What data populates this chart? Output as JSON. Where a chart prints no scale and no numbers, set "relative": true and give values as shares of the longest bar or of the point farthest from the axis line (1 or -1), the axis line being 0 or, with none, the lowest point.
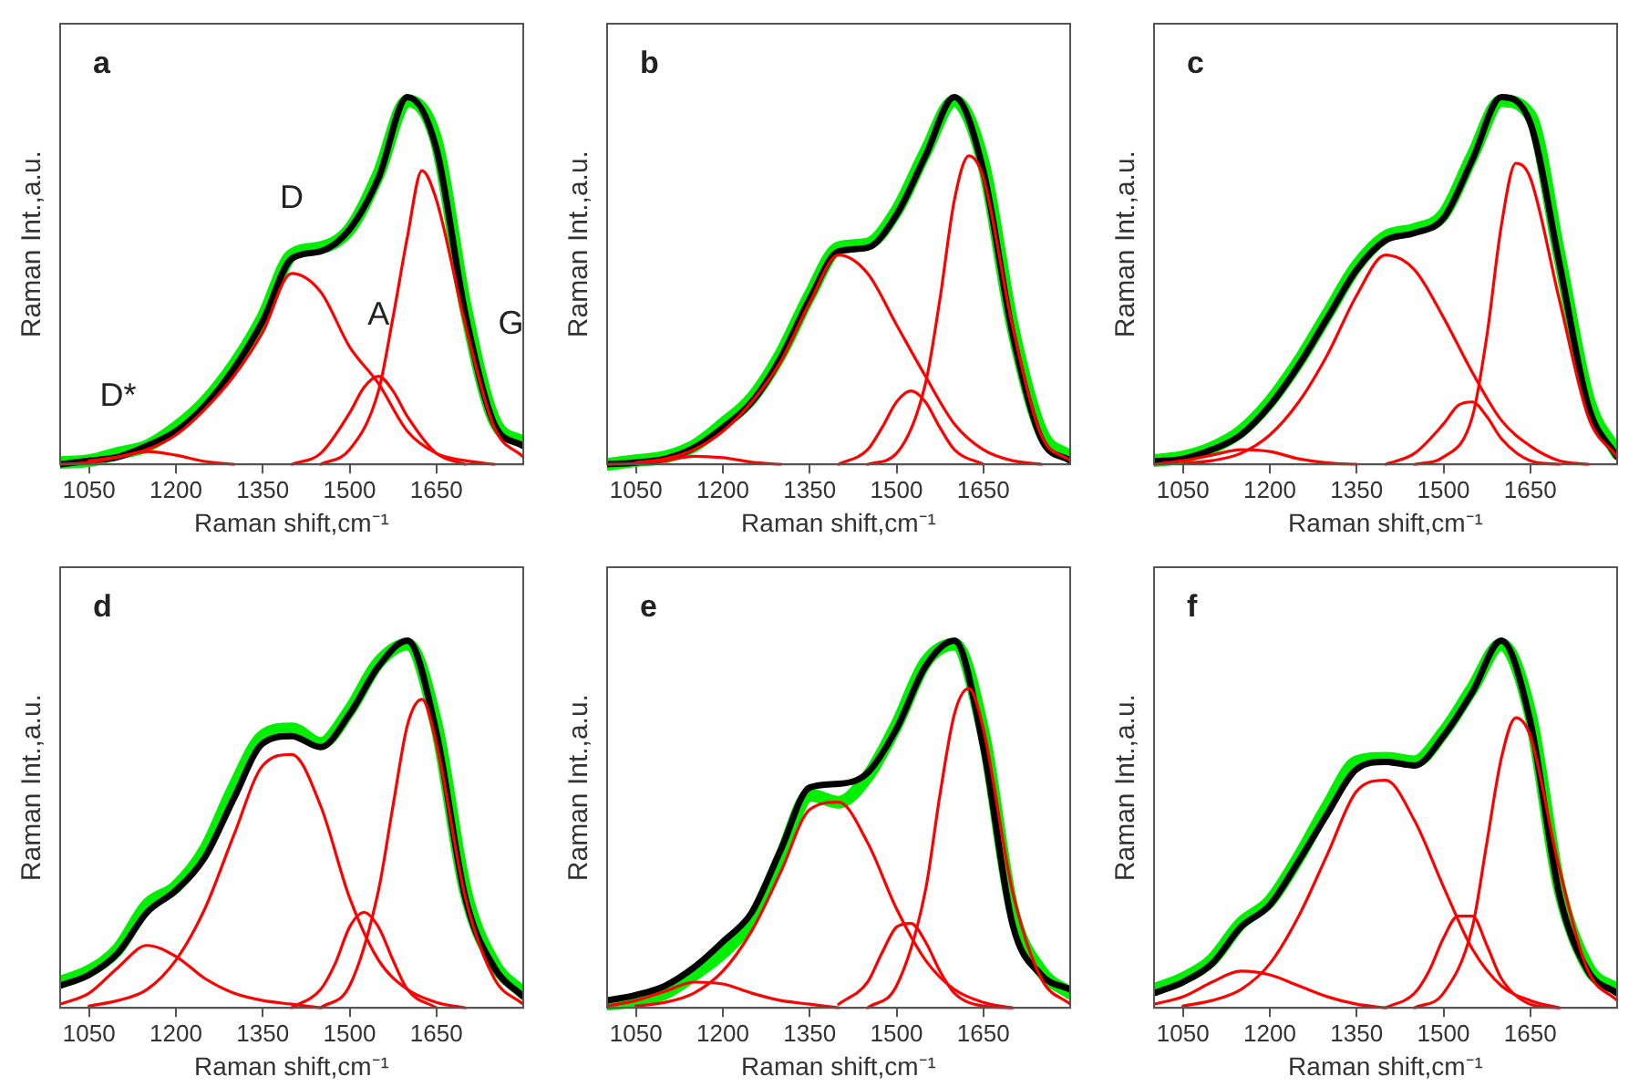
{
  "chart_data": [
    {
      "type": "line",
      "relative": true,
      "xlabel": "Raman shift,cm⁻¹",
      "ylabel": "Raman Int.,a.u.",
      "xlim": [
        1000,
        1800
      ],
      "xticks": [
        1050,
        1200,
        1350,
        1500,
        1650
      ],
      "tick_labels": "x",
      "annotations": [
        "a",
        {
          "text": "D*",
          "x": 1100,
          "y": 0.02
        },
        {
          "text": "D",
          "x": 1400,
          "y": 0.56
        },
        {
          "text": "A",
          "x": 1550,
          "y": 0.24
        },
        {
          "text": "G",
          "x": 1700,
          "y": 0.38
        }
      ],
      "series": [
        {
          "color": "#00ee00",
          "x": [
            1000,
            1050,
            1100,
            1150,
            1200,
            1250,
            1300,
            1350,
            1400,
            1450,
            1500,
            1550,
            1600,
            1650,
            1700,
            1750,
            1800
          ],
          "values": [
            0.005,
            0.01,
            0.03,
            0.05,
            0.1,
            0.17,
            0.27,
            0.4,
            0.57,
            0.59,
            0.64,
            0.79,
            0.99,
            0.88,
            0.43,
            0.12,
            0.06
          ]
        },
        {
          "color": "#000000",
          "x": [
            1000,
            1050,
            1100,
            1150,
            1200,
            1250,
            1300,
            1350,
            1400,
            1450,
            1500,
            1550,
            1600,
            1650,
            1700,
            1750,
            1800
          ],
          "values": [
            0,
            0.01,
            0.02,
            0.05,
            0.09,
            0.16,
            0.26,
            0.39,
            0.56,
            0.58,
            0.64,
            0.78,
            1.0,
            0.86,
            0.41,
            0.11,
            0.05
          ]
        },
        {
          "color": "#ff0000",
          "x": [
            1000,
            1050,
            1100,
            1150,
            1200,
            1250,
            1300
          ],
          "values": [
            0,
            0.005,
            0.02,
            0.035,
            0.025,
            0.008,
            0
          ]
        },
        {
          "color": "#ff0000",
          "x": [
            1050,
            1100,
            1150,
            1200,
            1250,
            1300,
            1350,
            1400,
            1450,
            1500,
            1550,
            1600,
            1650,
            1700,
            1750
          ],
          "values": [
            0.01,
            0.02,
            0.04,
            0.08,
            0.15,
            0.24,
            0.36,
            0.52,
            0.47,
            0.32,
            0.22,
            0.09,
            0.03,
            0.01,
            0
          ]
        },
        {
          "color": "#ff0000",
          "x": [
            1400,
            1450,
            1500,
            1525,
            1550,
            1575,
            1600,
            1650,
            1700
          ],
          "values": [
            0,
            0.03,
            0.14,
            0.21,
            0.24,
            0.2,
            0.13,
            0.03,
            0
          ]
        },
        {
          "color": "#ff0000",
          "x": [
            1450,
            1500,
            1550,
            1575,
            1600,
            1625,
            1650,
            1700,
            1750,
            1800
          ],
          "values": [
            0,
            0.04,
            0.2,
            0.4,
            0.62,
            0.8,
            0.72,
            0.38,
            0.1,
            0.02
          ]
        }
      ]
    },
    {
      "type": "line",
      "relative": true,
      "xlabel": "Raman shift,cm⁻¹",
      "ylabel": "Raman Int.,a.u.",
      "xlim": [
        1000,
        1800
      ],
      "xticks": [
        1050,
        1200,
        1350,
        1500,
        1650
      ],
      "tick_labels": "x",
      "annotations": [
        "b"
      ],
      "series": [
        {
          "color": "#00ee00",
          "x": [
            1000,
            1050,
            1100,
            1150,
            1200,
            1250,
            1300,
            1350,
            1400,
            1450,
            1500,
            1550,
            1600,
            1650,
            1700,
            1750,
            1800
          ],
          "values": [
            0,
            0.01,
            0.02,
            0.05,
            0.11,
            0.18,
            0.3,
            0.46,
            0.59,
            0.6,
            0.69,
            0.85,
            0.99,
            0.82,
            0.38,
            0.09,
            0.02
          ]
        },
        {
          "color": "#000000",
          "x": [
            1000,
            1050,
            1100,
            1150,
            1200,
            1250,
            1300,
            1350,
            1400,
            1450,
            1500,
            1550,
            1600,
            1650,
            1700,
            1750,
            1800
          ],
          "values": [
            0,
            0.005,
            0.015,
            0.045,
            0.1,
            0.17,
            0.29,
            0.45,
            0.58,
            0.59,
            0.68,
            0.84,
            1.0,
            0.8,
            0.36,
            0.07,
            0.01
          ]
        },
        {
          "color": "#ff0000",
          "x": [
            1000,
            1050,
            1100,
            1150,
            1200,
            1250,
            1300
          ],
          "values": [
            0,
            0.003,
            0.01,
            0.022,
            0.018,
            0.006,
            0
          ]
        },
        {
          "color": "#ff0000",
          "x": [
            1050,
            1100,
            1150,
            1200,
            1250,
            1300,
            1350,
            1400,
            1450,
            1500,
            1550,
            1600,
            1650,
            1700,
            1750
          ],
          "values": [
            0.005,
            0.015,
            0.04,
            0.09,
            0.17,
            0.28,
            0.44,
            0.57,
            0.52,
            0.38,
            0.24,
            0.11,
            0.04,
            0.01,
            0
          ]
        },
        {
          "color": "#ff0000",
          "x": [
            1400,
            1450,
            1475,
            1500,
            1525,
            1550,
            1575,
            1600,
            1650
          ],
          "values": [
            0,
            0.04,
            0.1,
            0.17,
            0.2,
            0.17,
            0.1,
            0.04,
            0
          ]
        },
        {
          "color": "#ff0000",
          "x": [
            1450,
            1500,
            1550,
            1575,
            1600,
            1625,
            1650,
            1700,
            1750,
            1800
          ],
          "values": [
            0,
            0.03,
            0.22,
            0.45,
            0.72,
            0.84,
            0.78,
            0.38,
            0.08,
            0.01
          ]
        }
      ]
    },
    {
      "type": "line",
      "relative": true,
      "xlabel": "Raman shift,cm⁻¹",
      "ylabel": "Raman Int.,a.u.",
      "xlim": [
        1000,
        1800
      ],
      "xticks": [
        1050,
        1200,
        1350,
        1500,
        1650
      ],
      "tick_labels": "x",
      "annotations": [
        "c"
      ],
      "series": [
        {
          "color": "#00ee00",
          "x": [
            1000,
            1050,
            1100,
            1150,
            1200,
            1250,
            1300,
            1350,
            1400,
            1450,
            1500,
            1550,
            1600,
            1650,
            1700,
            1750,
            1800
          ],
          "values": [
            0.01,
            0.02,
            0.045,
            0.09,
            0.17,
            0.28,
            0.41,
            0.54,
            0.62,
            0.64,
            0.68,
            0.84,
            0.99,
            0.95,
            0.57,
            0.18,
            0.03
          ]
        },
        {
          "color": "#000000",
          "x": [
            1000,
            1050,
            1100,
            1150,
            1200,
            1250,
            1300,
            1350,
            1400,
            1450,
            1500,
            1550,
            1600,
            1650,
            1700,
            1750,
            1800
          ],
          "values": [
            0.008,
            0.015,
            0.04,
            0.08,
            0.16,
            0.27,
            0.4,
            0.53,
            0.61,
            0.63,
            0.67,
            0.83,
            1.0,
            0.93,
            0.55,
            0.16,
            0.02
          ]
        },
        {
          "color": "#ff0000",
          "x": [
            1000,
            1050,
            1100,
            1150,
            1200,
            1250,
            1300,
            1350
          ],
          "values": [
            0,
            0.01,
            0.025,
            0.04,
            0.035,
            0.015,
            0.004,
            0
          ]
        },
        {
          "color": "#ff0000",
          "x": [
            1050,
            1100,
            1150,
            1200,
            1250,
            1300,
            1350,
            1400,
            1450,
            1500,
            1550,
            1600,
            1650,
            1700,
            1750
          ],
          "values": [
            0.003,
            0.01,
            0.03,
            0.08,
            0.17,
            0.3,
            0.46,
            0.57,
            0.53,
            0.4,
            0.25,
            0.12,
            0.05,
            0.01,
            0
          ]
        },
        {
          "color": "#ff0000",
          "x": [
            1400,
            1450,
            1500,
            1525,
            1550,
            1575,
            1600,
            1650,
            1700
          ],
          "values": [
            0,
            0.03,
            0.11,
            0.16,
            0.17,
            0.13,
            0.07,
            0.01,
            0
          ]
        },
        {
          "color": "#ff0000",
          "x": [
            1450,
            1500,
            1550,
            1575,
            1600,
            1625,
            1650,
            1700,
            1750,
            1800
          ],
          "values": [
            0,
            0.02,
            0.13,
            0.35,
            0.65,
            0.82,
            0.78,
            0.45,
            0.13,
            0.02
          ]
        }
      ]
    },
    {
      "type": "line",
      "relative": true,
      "xlabel": "Raman shift,cm⁻¹",
      "ylabel": "Raman Int.,a.u.",
      "xlim": [
        1000,
        1800
      ],
      "xticks": [
        1050,
        1200,
        1350,
        1500,
        1650
      ],
      "tick_labels": "x",
      "annotations": [
        "d"
      ],
      "series": [
        {
          "color": "#00ee00",
          "x": [
            1000,
            1050,
            1100,
            1150,
            1200,
            1250,
            1300,
            1350,
            1400,
            1450,
            1500,
            1550,
            1600,
            1650,
            1700,
            1750,
            1800
          ],
          "values": [
            0.07,
            0.1,
            0.16,
            0.28,
            0.33,
            0.43,
            0.6,
            0.74,
            0.76,
            0.72,
            0.81,
            0.94,
            0.99,
            0.77,
            0.32,
            0.12,
            0.04
          ]
        },
        {
          "color": "#000000",
          "x": [
            1000,
            1050,
            1100,
            1150,
            1200,
            1250,
            1300,
            1350,
            1400,
            1450,
            1500,
            1550,
            1600,
            1650,
            1700,
            1750,
            1800
          ],
          "values": [
            0.06,
            0.09,
            0.15,
            0.26,
            0.32,
            0.41,
            0.57,
            0.72,
            0.74,
            0.71,
            0.8,
            0.93,
            1.0,
            0.75,
            0.3,
            0.11,
            0.03
          ]
        },
        {
          "color": "#ff0000",
          "x": [
            1000,
            1050,
            1100,
            1150,
            1200,
            1250,
            1300,
            1350,
            1400,
            1450
          ],
          "values": [
            0.01,
            0.04,
            0.11,
            0.17,
            0.14,
            0.08,
            0.04,
            0.02,
            0.01,
            0
          ]
        },
        {
          "color": "#ff0000",
          "x": [
            1050,
            1100,
            1150,
            1200,
            1250,
            1300,
            1350,
            1400,
            1450,
            1500,
            1550,
            1600,
            1650,
            1700
          ],
          "values": [
            0.005,
            0.02,
            0.05,
            0.13,
            0.27,
            0.47,
            0.66,
            0.69,
            0.55,
            0.3,
            0.13,
            0.05,
            0.015,
            0
          ]
        },
        {
          "color": "#ff0000",
          "x": [
            1400,
            1450,
            1475,
            1500,
            1525,
            1550,
            1575,
            1600,
            1650
          ],
          "values": [
            0,
            0.05,
            0.12,
            0.22,
            0.26,
            0.22,
            0.13,
            0.05,
            0
          ]
        },
        {
          "color": "#ff0000",
          "x": [
            1450,
            1500,
            1550,
            1575,
            1600,
            1625,
            1650,
            1700,
            1750,
            1800
          ],
          "values": [
            0,
            0.06,
            0.32,
            0.55,
            0.77,
            0.84,
            0.72,
            0.3,
            0.08,
            0.01
          ]
        }
      ]
    },
    {
      "type": "line",
      "relative": true,
      "xlabel": "Raman shift,cm⁻¹",
      "ylabel": "Raman Int.,a.u.",
      "xlim": [
        1000,
        1800
      ],
      "xticks": [
        1050,
        1200,
        1350,
        1500,
        1650
      ],
      "tick_labels": "x",
      "annotations": [
        "e"
      ],
      "series": [
        {
          "color": "#00ee00",
          "x": [
            1000,
            1050,
            1100,
            1150,
            1200,
            1250,
            1300,
            1350,
            1400,
            1450,
            1500,
            1550,
            1600,
            1650,
            1700,
            1750,
            1800
          ],
          "values": [
            0.01,
            0.02,
            0.04,
            0.09,
            0.15,
            0.24,
            0.41,
            0.58,
            0.56,
            0.63,
            0.77,
            0.94,
            0.99,
            0.75,
            0.27,
            0.1,
            0.04
          ]
        },
        {
          "color": "#000000",
          "x": [
            1000,
            1050,
            1100,
            1150,
            1200,
            1250,
            1300,
            1350,
            1400,
            1450,
            1500,
            1550,
            1600,
            1650,
            1700,
            1750,
            1800
          ],
          "values": [
            0.02,
            0.035,
            0.06,
            0.11,
            0.18,
            0.26,
            0.43,
            0.6,
            0.61,
            0.64,
            0.76,
            0.93,
            1.0,
            0.71,
            0.23,
            0.09,
            0.05
          ]
        },
        {
          "color": "#ff0000",
          "x": [
            1000,
            1050,
            1100,
            1150,
            1200,
            1250,
            1300,
            1350,
            1400
          ],
          "values": [
            0.005,
            0.02,
            0.045,
            0.07,
            0.065,
            0.04,
            0.02,
            0.01,
            0
          ]
        },
        {
          "color": "#ff0000",
          "x": [
            1050,
            1100,
            1150,
            1200,
            1250,
            1300,
            1350,
            1400,
            1450,
            1500,
            1550,
            1600,
            1650,
            1700
          ],
          "values": [
            0.005,
            0.015,
            0.04,
            0.1,
            0.21,
            0.37,
            0.54,
            0.56,
            0.45,
            0.27,
            0.13,
            0.05,
            0.015,
            0
          ]
        },
        {
          "color": "#ff0000",
          "x": [
            1400,
            1450,
            1475,
            1500,
            1525,
            1550,
            1575,
            1600,
            1650,
            1700
          ],
          "values": [
            0.01,
            0.07,
            0.15,
            0.22,
            0.23,
            0.18,
            0.1,
            0.04,
            0.005,
            0
          ]
        },
        {
          "color": "#ff0000",
          "x": [
            1450,
            1500,
            1550,
            1575,
            1600,
            1625,
            1650,
            1700,
            1750,
            1800
          ],
          "values": [
            0,
            0.06,
            0.32,
            0.58,
            0.8,
            0.87,
            0.76,
            0.32,
            0.08,
            0.01
          ]
        }
      ]
    },
    {
      "type": "line",
      "relative": true,
      "xlabel": "Raman shift,cm⁻¹",
      "ylabel": "Raman Int.,a.u.",
      "xlim": [
        1000,
        1800
      ],
      "xticks": [
        1050,
        1200,
        1350,
        1500,
        1650
      ],
      "tick_labels": "x",
      "annotations": [
        "f"
      ],
      "series": [
        {
          "color": "#00ee00",
          "x": [
            1000,
            1050,
            1100,
            1150,
            1200,
            1250,
            1300,
            1350,
            1400,
            1450,
            1500,
            1550,
            1600,
            1650,
            1700,
            1750,
            1800
          ],
          "values": [
            0.05,
            0.08,
            0.13,
            0.23,
            0.29,
            0.41,
            0.55,
            0.67,
            0.68,
            0.67,
            0.75,
            0.87,
            0.99,
            0.8,
            0.33,
            0.11,
            0.05
          ]
        },
        {
          "color": "#000000",
          "x": [
            1000,
            1050,
            1100,
            1150,
            1200,
            1250,
            1300,
            1350,
            1400,
            1450,
            1500,
            1550,
            1600,
            1650,
            1700,
            1750,
            1800
          ],
          "values": [
            0.04,
            0.07,
            0.12,
            0.22,
            0.28,
            0.4,
            0.53,
            0.65,
            0.67,
            0.66,
            0.74,
            0.86,
            1.0,
            0.78,
            0.31,
            0.1,
            0.04
          ]
        },
        {
          "color": "#ff0000",
          "x": [
            1000,
            1050,
            1100,
            1150,
            1200,
            1250,
            1300,
            1350,
            1400
          ],
          "values": [
            0.01,
            0.03,
            0.07,
            0.1,
            0.09,
            0.06,
            0.03,
            0.01,
            0
          ]
        },
        {
          "color": "#ff0000",
          "x": [
            1050,
            1100,
            1150,
            1200,
            1250,
            1300,
            1350,
            1400,
            1450,
            1500,
            1550,
            1600,
            1650,
            1700
          ],
          "values": [
            0.005,
            0.02,
            0.05,
            0.12,
            0.25,
            0.42,
            0.59,
            0.62,
            0.51,
            0.33,
            0.16,
            0.06,
            0.02,
            0
          ]
        },
        {
          "color": "#ff0000",
          "x": [
            1400,
            1450,
            1475,
            1500,
            1525,
            1550,
            1575,
            1600,
            1650,
            1700
          ],
          "values": [
            0,
            0.04,
            0.1,
            0.19,
            0.25,
            0.25,
            0.17,
            0.08,
            0.01,
            0
          ]
        },
        {
          "color": "#ff0000",
          "x": [
            1450,
            1500,
            1550,
            1575,
            1600,
            1625,
            1650,
            1700,
            1750,
            1800
          ],
          "values": [
            0,
            0.04,
            0.22,
            0.45,
            0.68,
            0.79,
            0.74,
            0.38,
            0.1,
            0.02
          ]
        }
      ]
    }
  ]
}
